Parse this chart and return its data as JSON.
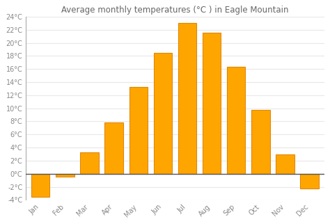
{
  "title": "Average monthly temperatures (°C ) in Eagle Mountain",
  "months": [
    "Jan",
    "Feb",
    "Mar",
    "Apr",
    "May",
    "Jun",
    "Jul",
    "Aug",
    "Sep",
    "Oct",
    "Nov",
    "Dec"
  ],
  "values": [
    -3.5,
    -0.5,
    3.3,
    7.8,
    13.3,
    18.5,
    23.0,
    21.5,
    16.3,
    9.8,
    3.0,
    -2.3
  ],
  "bar_color": "#FFA500",
  "bar_edge_color": "#E08800",
  "background_color": "#ffffff",
  "plot_bg_color": "#ffffff",
  "grid_color": "#e8e8e8",
  "ylim": [
    -4,
    24
  ],
  "yticks": [
    -4,
    -2,
    0,
    2,
    4,
    6,
    8,
    10,
    12,
    14,
    16,
    18,
    20,
    22,
    24
  ],
  "title_fontsize": 8.5,
  "tick_fontsize": 7,
  "zero_line_color": "#555555",
  "spine_color": "#aaaaaa",
  "tick_color": "#888888"
}
